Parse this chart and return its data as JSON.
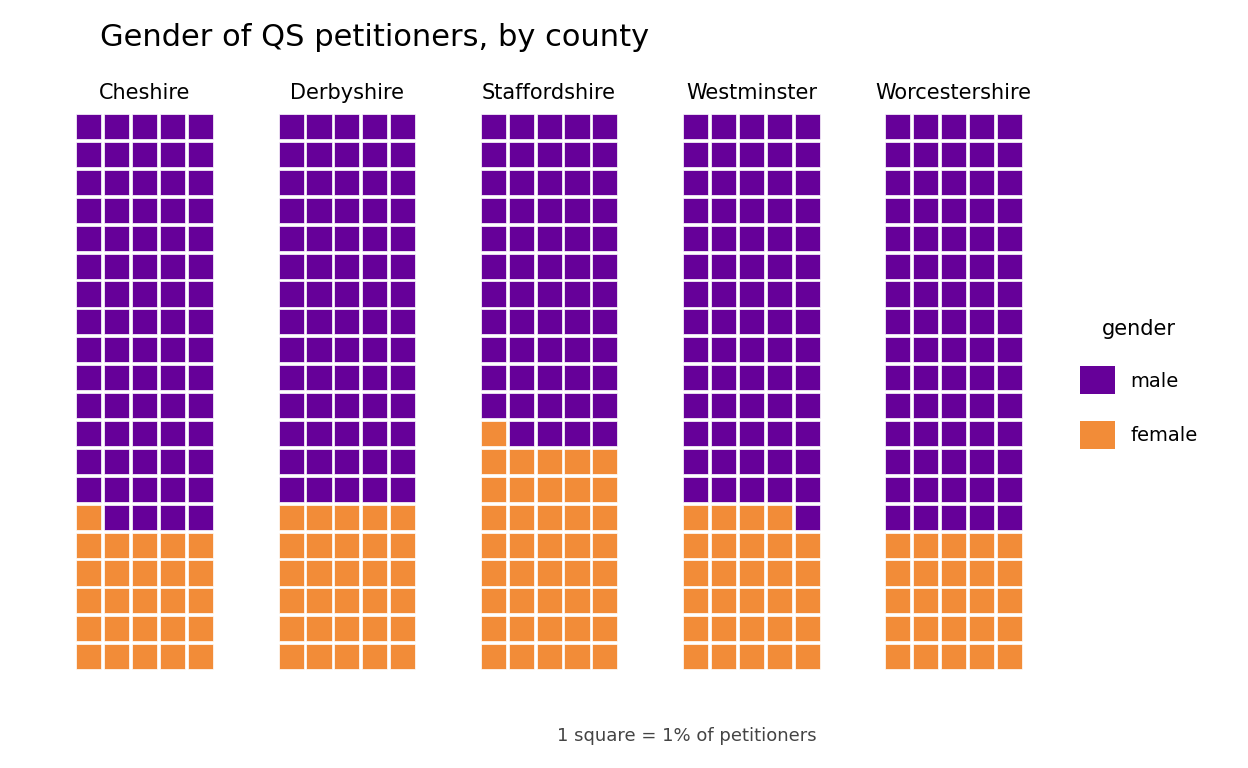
{
  "title": "Gender of QS petitioners, by county",
  "counties": [
    "Cheshire",
    "Derbyshire",
    "Staffordshire",
    "Westminster",
    "Worcestershire"
  ],
  "female_pct": [
    26,
    30,
    41,
    29,
    25
  ],
  "rows": 20,
  "cols": 5,
  "male_color": "#660099",
  "female_color": "#F28C38",
  "grid_color": "#ffffff",
  "bg_color": "#ffffff",
  "legend_title": "gender",
  "legend_labels": [
    "male",
    "female"
  ],
  "footnote": "1 square = 1% of petitioners",
  "title_fontsize": 22,
  "label_fontsize": 15,
  "legend_fontsize": 14,
  "footnote_fontsize": 13
}
